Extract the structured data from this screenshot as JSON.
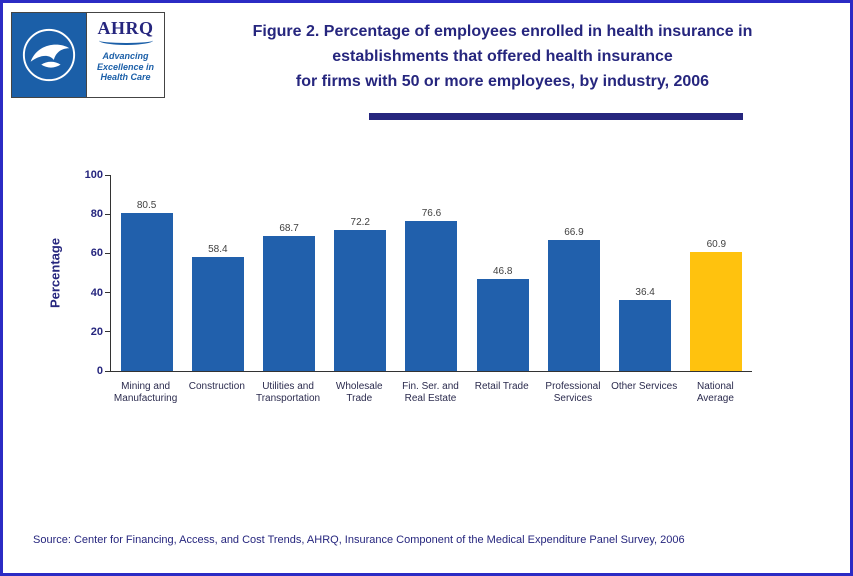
{
  "header": {
    "title_lines": [
      "Figure 2. Percentage of employees enrolled in health insurance in",
      "establishments that offered health insurance",
      "for firms with 50 or more employees, by industry, 2006"
    ],
    "ahrq": {
      "acronym": "AHRQ",
      "tagline": "Advancing\nExcellence in\nHealth Care"
    }
  },
  "chart_data": {
    "type": "bar",
    "title": "Figure 2. Percentage of employees enrolled in health insurance in establishments that offered health insurance for firms with 50 or more employees, by industry, 2006",
    "categories": [
      "Mining and\nManufacturing",
      "Construction",
      "Utilities and\nTransportation",
      "Wholesale\nTrade",
      "Fin. Ser. and\nReal Estate",
      "Retail Trade",
      "Professional\nServices",
      "Other Services",
      "National\nAverage"
    ],
    "values": [
      80.5,
      58.4,
      68.7,
      72.2,
      76.6,
      46.8,
      66.9,
      36.4,
      60.9
    ],
    "xlabel": "",
    "ylabel": "Percentage",
    "ylim": [
      0,
      100
    ],
    "yticks": [
      0,
      20,
      40,
      60,
      80,
      100
    ],
    "grid": false,
    "legend": "none",
    "bar_color": "#2160AC",
    "highlight_index": 8,
    "highlight_color": "#FFC20E"
  },
  "footer": {
    "source": "Source: Center for Financing, Access, and Cost Trends, AHRQ, Insurance Component of the Medical Expenditure Panel Survey, 2006"
  },
  "colors": {
    "page_border": "#2B2BC4",
    "title_text": "#26267E",
    "bar": "#2160AC",
    "highlight": "#FFC20E",
    "hhs_logo_blue": "#1B5FA8"
  }
}
